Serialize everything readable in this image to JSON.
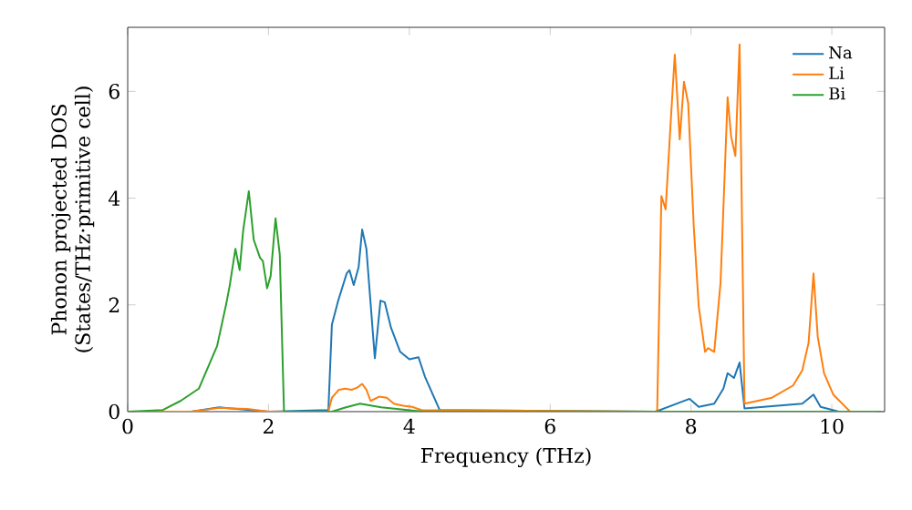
{
  "chart_data": {
    "type": "line",
    "xlabel": "Frequency (THz)",
    "ylabel": "Phonon projected DOS (States/THz·primitive cell)",
    "xlim": [
      0,
      10.75
    ],
    "ylim": [
      0,
      7.2
    ],
    "xticks": [
      0,
      2,
      4,
      6,
      8,
      10
    ],
    "yticks": [
      0,
      2,
      4,
      6
    ],
    "grid": false,
    "legend": "top right",
    "series": [
      {
        "name": "Na",
        "color": "#1f77b4",
        "x": [
          0,
          0.9,
          1.3,
          1.7,
          2.0,
          2.85,
          2.9,
          2.99,
          3.11,
          3.15,
          3.21,
          3.28,
          3.33,
          3.39,
          3.51,
          3.59,
          3.65,
          3.74,
          3.87,
          4.0,
          4.13,
          4.22,
          4.43,
          7.5,
          7.98,
          8.11,
          8.33,
          8.46,
          8.52,
          8.61,
          8.69,
          8.76,
          9.58,
          9.74,
          9.84,
          10.1,
          10.7
        ],
        "values": [
          0,
          0,
          0.08,
          null,
          0,
          0.03,
          1.63,
          2.08,
          2.59,
          2.65,
          2.37,
          2.71,
          3.41,
          3.05,
          1.0,
          2.08,
          2.05,
          1.57,
          1.12,
          0.98,
          1.02,
          0.66,
          0.03,
          0,
          0.24,
          0.09,
          0.15,
          0.43,
          0.72,
          0.63,
          0.92,
          0.06,
          0.15,
          0.32,
          0.09,
          0,
          0
        ]
      },
      {
        "name": "Li",
        "color": "#ff7f0e",
        "x": [
          0,
          0.9,
          1.3,
          1.7,
          2.0,
          2.85,
          2.9,
          3.0,
          3.09,
          3.18,
          3.26,
          3.33,
          3.39,
          3.45,
          3.57,
          3.68,
          3.78,
          3.91,
          4.04,
          4.17,
          7.5,
          7.52,
          7.58,
          7.64,
          7.72,
          7.77,
          7.84,
          7.9,
          7.96,
          8.04,
          8.11,
          8.2,
          8.24,
          8.33,
          8.42,
          8.52,
          8.57,
          8.63,
          8.69,
          8.76,
          9.15,
          9.45,
          9.58,
          9.67,
          9.74,
          9.8,
          9.89,
          10.02,
          10.26
        ],
        "values": [
          0,
          0,
          0.07,
          0.05,
          0,
          0,
          0.26,
          0.41,
          0.43,
          0.41,
          0.45,
          0.52,
          0.41,
          0.2,
          0.28,
          0.26,
          0.15,
          0.11,
          0.09,
          0.03,
          0,
          0.03,
          4.04,
          3.79,
          5.61,
          6.69,
          5.1,
          6.18,
          5.78,
          3.45,
          1.97,
          1.12,
          1.19,
          1.12,
          2.42,
          5.89,
          5.15,
          4.79,
          6.88,
          0.15,
          0.26,
          0.49,
          0.77,
          1.29,
          2.59,
          1.4,
          0.72,
          0.32,
          0
        ]
      },
      {
        "name": "Bi",
        "color": "#2ca02c",
        "x": [
          0,
          0.5,
          0.75,
          1.01,
          1.27,
          1.4,
          1.45,
          1.53,
          1.59,
          1.64,
          1.72,
          1.79,
          1.88,
          1.92,
          1.98,
          2.03,
          2.1,
          2.16,
          2.22,
          2.9,
          3.1,
          3.3,
          3.6,
          4.2,
          10.7
        ],
        "values": [
          0,
          0.03,
          0.2,
          0.43,
          1.23,
          2.02,
          2.37,
          3.05,
          2.65,
          3.39,
          4.13,
          3.22,
          2.88,
          2.82,
          2.31,
          2.54,
          3.62,
          2.94,
          0,
          0,
          0.08,
          0.15,
          0.08,
          0,
          0
        ]
      }
    ]
  }
}
